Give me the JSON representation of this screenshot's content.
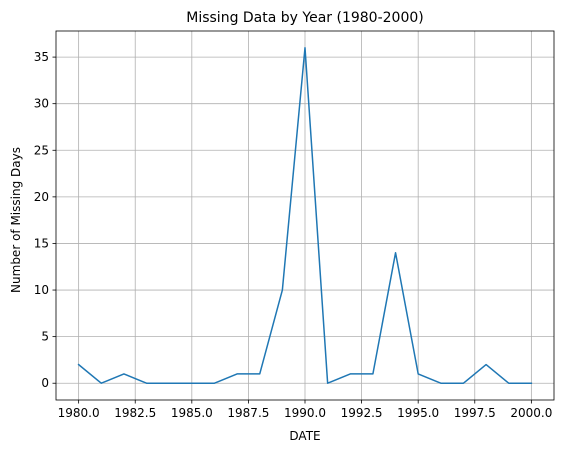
{
  "chart_data": {
    "type": "line",
    "title": "Missing Data by Year (1980-2000)",
    "xlabel": "DATE",
    "ylabel": "Number of Missing Days",
    "xlim": [
      1979.0,
      2001.0
    ],
    "ylim": [
      -1.8,
      37.8
    ],
    "grid": true,
    "x_ticks": [
      1980.0,
      1982.5,
      1985.0,
      1987.5,
      1990.0,
      1992.5,
      1995.0,
      1997.5,
      2000.0
    ],
    "x_tick_labels": [
      "1980.0",
      "1982.5",
      "1985.0",
      "1987.5",
      "1990.0",
      "1992.5",
      "1995.0",
      "1997.5",
      "2000.0"
    ],
    "y_ticks": [
      0,
      5,
      10,
      15,
      20,
      25,
      30,
      35
    ],
    "y_tick_labels": [
      "0",
      "5",
      "10",
      "15",
      "20",
      "25",
      "30",
      "35"
    ],
    "series": [
      {
        "color": "#1f77b4",
        "x": [
          1980,
          1981,
          1982,
          1983,
          1984,
          1985,
          1986,
          1987,
          1988,
          1989,
          1990,
          1991,
          1992,
          1993,
          1994,
          1995,
          1996,
          1997,
          1998,
          1999,
          2000
        ],
        "values": [
          2,
          0,
          1,
          0,
          0,
          0,
          0,
          1,
          1,
          10,
          36,
          0,
          1,
          1,
          14,
          1,
          0,
          0,
          2,
          0,
          0
        ]
      }
    ]
  }
}
